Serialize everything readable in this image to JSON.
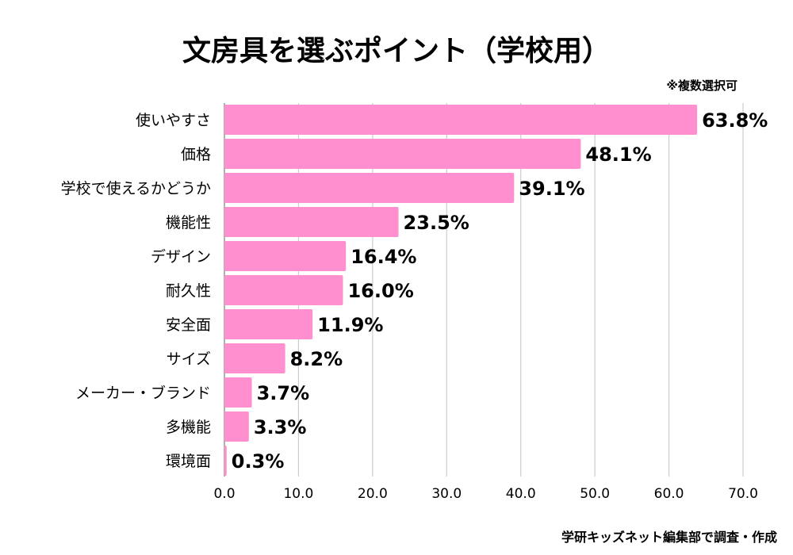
{
  "chart_data": {
    "type": "bar",
    "orientation": "horizontal",
    "title": "文房具を選ぶポイント（学校用）",
    "note": "※複数選択可",
    "credit": "学研キッズネット編集部で調査・作成",
    "categories": [
      "使いやすさ",
      "価格",
      "学校で使えるかどうか",
      "機能性",
      "デザイン",
      "耐久性",
      "安全面",
      "サイズ",
      "メーカー・ブランド",
      "多機能",
      "環境面"
    ],
    "values": [
      63.8,
      48.1,
      39.1,
      23.5,
      16.4,
      16.0,
      11.9,
      8.2,
      3.7,
      3.3,
      0.3
    ],
    "value_labels": [
      "63.8%",
      "48.1%",
      "39.1%",
      "23.5%",
      "16.4%",
      "16.0%",
      "11.9%",
      "8.2%",
      "3.7%",
      "3.3%",
      "0.3%"
    ],
    "xticks": [
      "0.0",
      "10.0",
      "20.0",
      "30.0",
      "40.0",
      "50.0",
      "60.0",
      "70.0"
    ],
    "xlim": [
      0,
      70
    ],
    "grid": true,
    "bar_color": "#ff8fce",
    "grid_color": "#cccccc"
  }
}
